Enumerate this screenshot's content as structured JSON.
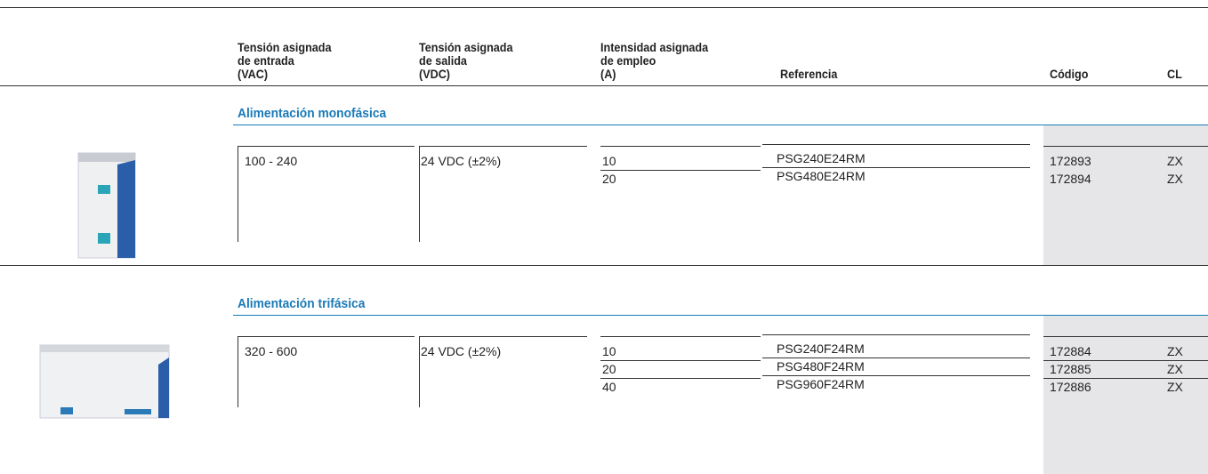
{
  "header": {
    "columns": [
      [
        "Tensión asignada",
        "de entrada",
        "(VAC)"
      ],
      [
        "Tensión asignada",
        "de salida",
        "(VDC)"
      ],
      [
        "Intensidad asignada",
        "de empleo",
        "(A)"
      ],
      [
        "Referencia"
      ],
      [
        "Código"
      ],
      [
        "CL"
      ]
    ]
  },
  "sections": [
    {
      "title": "Alimentación monofásica",
      "input": "100 - 240",
      "output": "24 VDC (±2%)",
      "rows": [
        {
          "current": 10,
          "reference": "PSG240E24RM",
          "code": 172893,
          "cl": "ZX"
        },
        {
          "current": 20,
          "reference": "PSG480E24RM",
          "code": 172894,
          "cl": "ZX"
        }
      ]
    },
    {
      "title": "Alimentación trifásica",
      "input": "320 - 600",
      "output": "24 VDC (±2%)",
      "rows": [
        {
          "current": 10,
          "reference": "PSG240F24RM",
          "code": 172884,
          "cl": "ZX"
        },
        {
          "current": 20,
          "reference": "PSG480F24RM",
          "code": 172885,
          "cl": "ZX"
        },
        {
          "current": 40,
          "reference": "PSG960F24RM",
          "code": 172886,
          "cl": "ZX"
        }
      ]
    }
  ]
}
